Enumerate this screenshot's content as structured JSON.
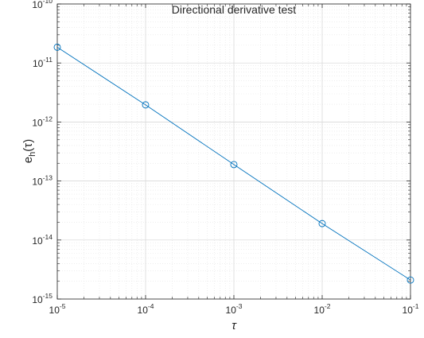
{
  "chart_data": {
    "type": "line",
    "title": "Directional derivative test",
    "xlabel": "τ",
    "ylabel": {
      "base": "e",
      "subscript": "h",
      "arg": "(τ)"
    },
    "xscale": "log",
    "yscale": "log",
    "xlim": [
      1e-05,
      0.1
    ],
    "ylim": [
      1e-15,
      1e-10
    ],
    "x_ticks": [
      {
        "base": "10",
        "exp": "-5",
        "value": 1e-05
      },
      {
        "base": "10",
        "exp": "-4",
        "value": 0.0001
      },
      {
        "base": "10",
        "exp": "-3",
        "value": 0.001
      },
      {
        "base": "10",
        "exp": "-2",
        "value": 0.01
      },
      {
        "base": "10",
        "exp": "-1",
        "value": 0.1
      }
    ],
    "y_ticks": [
      {
        "base": "10",
        "exp": "-10",
        "value": 1e-10
      },
      {
        "base": "10",
        "exp": "-11",
        "value": 1e-11
      },
      {
        "base": "10",
        "exp": "-12",
        "value": 1e-12
      },
      {
        "base": "10",
        "exp": "-13",
        "value": 1e-13
      },
      {
        "base": "10",
        "exp": "-14",
        "value": 1e-14
      },
      {
        "base": "10",
        "exp": "-15",
        "value": 1e-15
      }
    ],
    "grid": true,
    "minor_grid": true,
    "series": [
      {
        "color": "#0072BD",
        "marker": "circle",
        "x": [
          1e-05,
          0.0001,
          0.001,
          0.01,
          0.1
        ],
        "y": [
          1.85e-11,
          1.95e-12,
          1.9e-13,
          1.9e-14,
          2.1e-15
        ]
      }
    ]
  }
}
